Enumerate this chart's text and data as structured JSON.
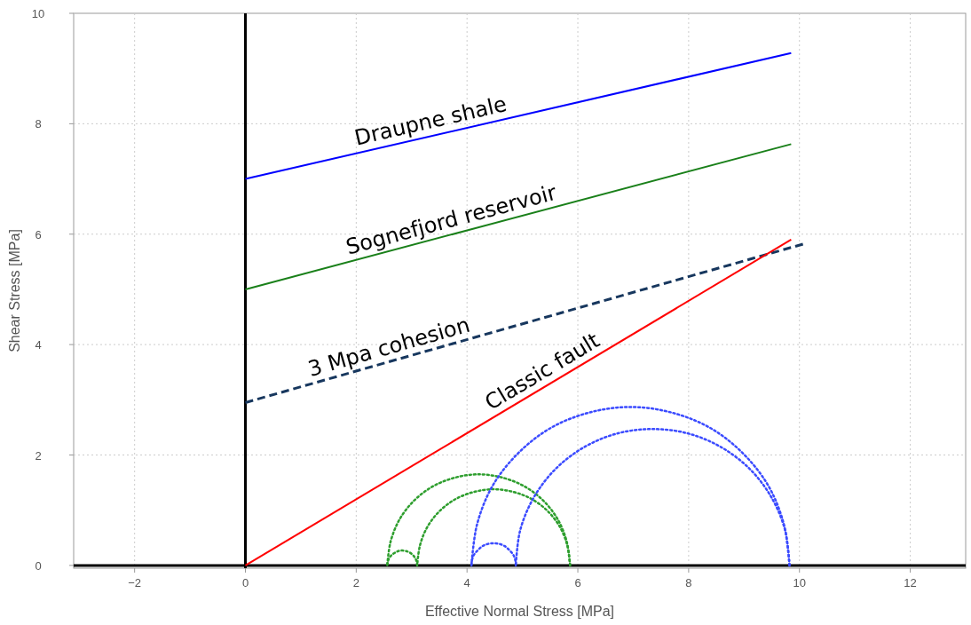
{
  "chart_data": {
    "type": "line",
    "xlabel": "Effective Normal Stress [MPa]",
    "ylabel": "Shear Stress [MPa]",
    "xlim": [
      -3.1,
      13
    ],
    "ylim": [
      -0.05,
      10
    ],
    "xticks": [
      {
        "value": -2,
        "label": "−2"
      },
      0,
      2,
      4,
      6,
      8,
      10,
      12
    ],
    "yticks": [
      0,
      2,
      4,
      6,
      8,
      10
    ],
    "grid": true,
    "marker": "none",
    "series": [
      {
        "color": "#0000ff",
        "line_style": "solid",
        "x": [
          0,
          9.85
        ],
        "values": [
          7,
          9.28
        ]
      },
      {
        "color": "#1a801a",
        "line_style": "solid",
        "x": [
          0,
          9.85
        ],
        "values": [
          5,
          7.63
        ]
      },
      {
        "color": "#17375e",
        "line_style": "dashed",
        "x": [
          0,
          10.1
        ],
        "values": [
          2.95,
          5.83
        ]
      },
      {
        "color": "#ff0000",
        "line_style": "solid",
        "x": [
          0,
          9.85
        ],
        "values": [
          0,
          5.9
        ]
      },
      {
        "color": "#2e9e2e",
        "line_style": "dotted",
        "x": [
          3.1,
          3.09,
          3.06,
          3.02,
          2.97,
          2.9,
          2.83,
          2.76,
          2.7,
          2.64,
          2.6,
          2.57,
          2.56
        ],
        "values": [
          0,
          0.07,
          0.14,
          0.19,
          0.23,
          0.26,
          0.27,
          0.26,
          0.23,
          0.19,
          0.14,
          0.07,
          0
        ]
      },
      {
        "color": "#2e9e2e",
        "line_style": "dotted",
        "x": [
          5.86,
          5.8,
          5.64,
          5.38,
          5.04,
          4.64,
          4.21,
          3.78,
          3.38,
          3.04,
          2.78,
          2.62,
          2.56
        ],
        "values": [
          0,
          0.43,
          0.83,
          1.17,
          1.43,
          1.59,
          1.65,
          1.59,
          1.43,
          1.17,
          0.83,
          0.43,
          0
        ]
      },
      {
        "color": "#2e9e2e",
        "line_style": "dotted",
        "x": [
          5.86,
          5.81,
          5.68,
          5.46,
          5.17,
          4.84,
          4.48,
          4.12,
          3.79,
          3.5,
          3.28,
          3.15,
          3.1
        ],
        "values": [
          0,
          0.36,
          0.69,
          0.98,
          1.2,
          1.33,
          1.38,
          1.33,
          1.2,
          0.98,
          0.69,
          0.36,
          0
        ]
      },
      {
        "color": "#3b4bff",
        "line_style": "dotted",
        "x": [
          4.88,
          4.87,
          4.83,
          4.76,
          4.68,
          4.58,
          4.48,
          4.38,
          4.28,
          4.2,
          4.13,
          4.09,
          4.08
        ],
        "values": [
          0,
          0.1,
          0.2,
          0.28,
          0.35,
          0.39,
          0.4,
          0.39,
          0.35,
          0.28,
          0.2,
          0.1,
          0
        ]
      },
      {
        "color": "#3b4bff",
        "line_style": "dotted",
        "x": [
          9.82,
          9.72,
          9.44,
          8.98,
          8.39,
          7.69,
          6.95,
          6.21,
          5.51,
          4.92,
          4.46,
          4.18,
          4.08
        ],
        "values": [
          0,
          0.74,
          1.44,
          2.03,
          2.49,
          2.77,
          2.87,
          2.77,
          2.49,
          2.03,
          1.44,
          0.74,
          0
        ]
      },
      {
        "color": "#3b4bff",
        "line_style": "dotted",
        "x": [
          9.82,
          9.74,
          9.49,
          9.1,
          8.59,
          7.99,
          7.35,
          6.71,
          6.11,
          5.6,
          5.21,
          4.96,
          4.88
        ],
        "values": [
          0,
          0.64,
          1.24,
          1.75,
          2.14,
          2.39,
          2.47,
          2.39,
          2.14,
          1.75,
          1.24,
          0.64,
          0
        ]
      }
    ],
    "annotations": [
      {
        "text": "Draupne shale",
        "x": 3.4,
        "y": 7.8
      },
      {
        "text": "Sognefjord reservoir",
        "x": 3.78,
        "y": 6.01
      },
      {
        "text": "3 Mpa cohesion",
        "x": 2.66,
        "y": 3.71
      },
      {
        "text": "Classic fault",
        "x": 5.49,
        "y": 3.29
      }
    ]
  }
}
